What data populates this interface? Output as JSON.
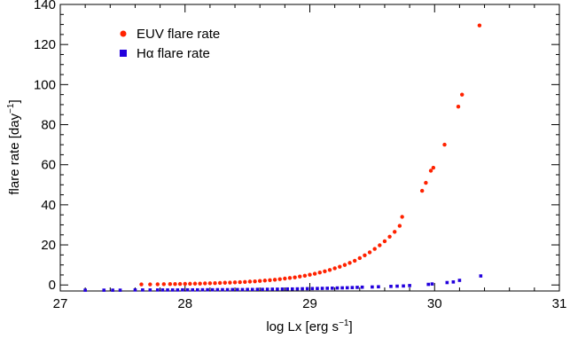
{
  "chart_data": {
    "type": "scatter",
    "xlabel": "log Lx [erg s",
    "xlabel_sup": "−1",
    "xlabel_end": "]",
    "ylabel": "flare rate [day",
    "ylabel_sup": "−1",
    "ylabel_end": "]",
    "xlim": [
      27,
      31
    ],
    "ylim": [
      -3,
      140
    ],
    "xticks": [
      "27",
      "28",
      "29",
      "30",
      "31"
    ],
    "yticks": [
      "0",
      "20",
      "40",
      "60",
      "80",
      "100",
      "120",
      "140"
    ],
    "legend": {
      "position": "top-left"
    },
    "grid": false,
    "series": [
      {
        "name": "EUV flare rate",
        "marker": "circle",
        "color": "#ff2200",
        "x": [
          27.65,
          27.72,
          27.78,
          27.83,
          27.88,
          27.92,
          27.96,
          28.0,
          28.04,
          28.08,
          28.12,
          28.16,
          28.2,
          28.24,
          28.28,
          28.32,
          28.36,
          28.4,
          28.44,
          28.48,
          28.52,
          28.56,
          28.6,
          28.64,
          28.68,
          28.72,
          28.76,
          28.8,
          28.84,
          28.88,
          28.92,
          28.96,
          29.0,
          29.04,
          29.08,
          29.12,
          29.16,
          29.2,
          29.24,
          29.28,
          29.32,
          29.36,
          29.4,
          29.44,
          29.48,
          29.52,
          29.56,
          29.6,
          29.64,
          29.68,
          29.72,
          29.74,
          29.9,
          29.93,
          29.97,
          29.99,
          30.08,
          30.19,
          30.22,
          30.36
        ],
        "y": [
          0.3,
          0.3,
          0.35,
          0.4,
          0.45,
          0.45,
          0.5,
          0.55,
          0.6,
          0.65,
          0.7,
          0.8,
          0.85,
          0.9,
          1.0,
          1.1,
          1.2,
          1.3,
          1.4,
          1.5,
          1.7,
          1.8,
          2.0,
          2.2,
          2.4,
          2.6,
          2.9,
          3.2,
          3.5,
          3.8,
          4.2,
          4.6,
          5.1,
          5.6,
          6.2,
          6.8,
          7.5,
          8.3,
          9.1,
          10.0,
          11.0,
          12.1,
          13.4,
          14.8,
          16.3,
          18.0,
          19.8,
          21.8,
          24.1,
          26.5,
          29.5,
          34.0,
          47,
          51,
          57,
          58.5,
          70,
          89,
          95,
          129.5
        ]
      },
      {
        "name": "Hα flare rate",
        "marker": "square",
        "color": "#2200dd",
        "x": [
          27.2,
          27.35,
          27.42,
          27.48,
          27.6,
          27.66,
          27.72,
          27.78,
          27.82,
          27.86,
          27.9,
          27.94,
          27.98,
          28.02,
          28.06,
          28.1,
          28.14,
          28.18,
          28.22,
          28.26,
          28.3,
          28.34,
          28.38,
          28.42,
          28.46,
          28.5,
          28.54,
          28.58,
          28.62,
          28.66,
          28.7,
          28.74,
          28.78,
          28.82,
          28.86,
          28.9,
          28.94,
          28.98,
          29.02,
          29.06,
          29.1,
          29.14,
          29.18,
          29.22,
          29.26,
          29.3,
          29.34,
          29.38,
          29.42,
          29.5,
          29.55,
          29.65,
          29.7,
          29.75,
          29.8,
          29.95,
          29.98,
          30.1,
          30.15,
          30.2,
          30.37
        ],
        "y": [
          -2.6,
          -2.6,
          -2.6,
          -2.6,
          -2.5,
          -2.5,
          -2.5,
          -2.5,
          -2.5,
          -2.5,
          -2.5,
          -2.5,
          -2.45,
          -2.45,
          -2.45,
          -2.45,
          -2.4,
          -2.4,
          -2.4,
          -2.35,
          -2.35,
          -2.35,
          -2.3,
          -2.3,
          -2.3,
          -2.25,
          -2.25,
          -2.2,
          -2.2,
          -2.15,
          -2.1,
          -2.1,
          -2.05,
          -2.0,
          -2.0,
          -1.95,
          -1.9,
          -1.85,
          -1.8,
          -1.75,
          -1.7,
          -1.65,
          -1.6,
          -1.5,
          -1.45,
          -1.4,
          -1.3,
          -1.2,
          -1.1,
          -1.0,
          -0.9,
          -0.7,
          -0.6,
          -0.5,
          -0.3,
          0.3,
          0.5,
          1.2,
          1.5,
          2.3,
          4.5
        ]
      }
    ]
  }
}
